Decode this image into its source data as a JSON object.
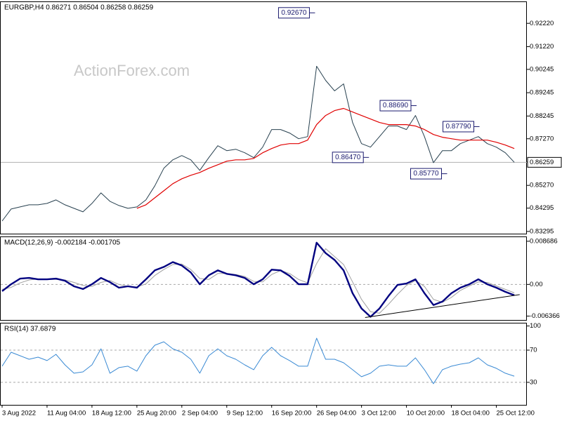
{
  "chart_data": [
    {
      "type": "line",
      "title": "EURGBP,H4  0.86271 0.86504 0.86258 0.86259",
      "watermark": "ActionForex.com",
      "xlim": [
        0,
        58.4
      ],
      "ylim": [
        0.832,
        0.9316
      ],
      "yticks": [
        {
          "value": 0.9222,
          "label": "0.92220"
        },
        {
          "value": 0.9122,
          "label": "0.91220"
        },
        {
          "value": 0.90245,
          "label": "0.90245"
        },
        {
          "value": 0.89245,
          "label": "0.89245"
        },
        {
          "value": 0.88245,
          "label": "0.88245"
        },
        {
          "value": 0.8727,
          "label": "0.87270"
        },
        {
          "value": 0.8627,
          "label": "0.86270"
        },
        {
          "value": 0.8527,
          "label": "0.85270"
        },
        {
          "value": 0.84295,
          "label": "0.84295"
        },
        {
          "value": 0.83295,
          "label": "0.83295"
        }
      ],
      "last_price": 0.86259,
      "series": [
        {
          "color": "#27404f",
          "width": 1,
          "values": [
            0.83743,
            0.84256,
            0.84346,
            0.84437,
            0.84437,
            0.84497,
            0.84648,
            0.84437,
            0.84285,
            0.84135,
            0.84497,
            0.84949,
            0.84587,
            0.84406,
            0.84285,
            0.84346,
            0.84648,
            0.85251,
            0.86005,
            0.86367,
            0.86548,
            0.86367,
            0.85915,
            0.86458,
            0.86971,
            0.86759,
            0.8682,
            0.86669,
            0.86458,
            0.8691,
            0.87664,
            0.87664,
            0.87514,
            0.87272,
            0.87363,
            0.9038,
            0.89776,
            0.89324,
            0.89625,
            0.87966,
            0.87061,
            0.8691,
            0.87363,
            0.87815,
            0.87815,
            0.87664,
            0.88268,
            0.87363,
            0.86246,
            0.86759,
            0.86759,
            0.87061,
            0.87212,
            0.87363,
            0.87061,
            0.8691,
            0.86669,
            0.86259
          ]
        },
        {
          "color": "#e00000",
          "width": 1.2,
          "values": [
            null,
            null,
            null,
            null,
            null,
            null,
            null,
            null,
            null,
            null,
            null,
            null,
            null,
            null,
            null,
            0.84285,
            0.84437,
            0.84738,
            0.8504,
            0.85342,
            0.85553,
            0.85703,
            0.85824,
            0.86005,
            0.86156,
            0.86307,
            0.86367,
            0.86367,
            0.86427,
            0.86669,
            0.8685,
            0.87001,
            0.87061,
            0.87061,
            0.87212,
            0.87876,
            0.88268,
            0.88479,
            0.8857,
            0.88419,
            0.88268,
            0.88117,
            0.87966,
            0.87876,
            0.87876,
            0.87876,
            0.87815,
            0.87664,
            0.87453,
            0.87333,
            0.87272,
            0.87212,
            0.87212,
            0.87212,
            0.87212,
            0.87121,
            0.87001,
            0.8685
          ]
        }
      ],
      "annotations": [
        {
          "label": "0.92670",
          "value": 0.9267,
          "x": 34.2
        },
        {
          "label": "0.86470",
          "value": 0.8647,
          "x": 40.2
        },
        {
          "label": "0.88690",
          "value": 0.8869,
          "x": 45.5
        },
        {
          "label": "0.85770",
          "value": 0.8577,
          "x": 48.9
        },
        {
          "label": "0.87790",
          "value": 0.8779,
          "x": 52.5
        }
      ]
    },
    {
      "type": "line",
      "title": "MACD(12,26,9) -0.002184 -0.001705",
      "xlim": [
        0,
        58.4
      ],
      "ylim": [
        -0.00715,
        0.00965
      ],
      "yticks": [
        0.008686,
        {
          "value": 0,
          "label": "0.00"
        },
        -0.006366
      ],
      "levels": [
        0
      ],
      "series": [
        {
          "color": "#a0a0a0",
          "width": 1,
          "values": [
            -0.001,
            -0.0006,
            0.0003,
            0.0009,
            0.0011,
            0.001,
            0.001,
            0.0009,
            0.0004,
            -0.0002,
            -0.0004,
            0.0004,
            0.0008,
            0,
            -0.0004,
            -0.0005,
            0.0001,
            0.0018,
            0.003,
            0.004,
            0.0041,
            0.003,
            0.0012,
            0.001,
            0.0022,
            0.0022,
            0.002,
            0.0016,
            0.0006,
            0.0005,
            0.002,
            0.0028,
            0.0022,
            0.001,
            0.0003,
            0.0042,
            0.0072,
            0.0056,
            0.004,
            0.0005,
            -0.003,
            -0.0055,
            -0.0058,
            -0.004,
            -0.002,
            -0.0002,
            0.0008,
            -0.0004,
            -0.003,
            -0.0036,
            -0.0026,
            -0.0012,
            -0.0003,
            0.0005,
            0.0004,
            -0.0003,
            -0.001,
            -0.001705
          ]
        },
        {
          "color": "#000080",
          "width": 2.4,
          "values": [
            -0.00135,
            4e-05,
            0.00116,
            0.0013,
            0.00102,
            0.00102,
            0.00116,
            0.00074,
            -0.00038,
            -0.00093,
            4e-05,
            0.0013,
            0.00046,
            -0.00066,
            -0.00038,
            -0.00066,
            0.00102,
            0.00283,
            0.00353,
            0.0045,
            0.0038,
            0.00241,
            4e-05,
            0.00185,
            0.00283,
            0.00213,
            0.00185,
            0.0013,
            4e-05,
            0.00102,
            0.00297,
            0.00283,
            0.00171,
            4e-05,
            4e-05,
            0.0084,
            0.00631,
            0.00492,
            0.00283,
            -0.00177,
            -0.00484,
            -0.00651,
            -0.00484,
            -0.00233,
            -0.0001,
            0.00018,
            0.00102,
            -0.00177,
            -0.00414,
            -0.00344,
            -0.00177,
            -0.00066,
            4e-05,
            0.00102,
            4e-05,
            -0.00066,
            -0.00149,
            -0.002184
          ]
        }
      ],
      "trendline": {
        "color": "#000000",
        "x": [
          40.4,
          57.6
        ],
        "values": [
          -0.00665,
          -0.00205
        ]
      }
    },
    {
      "type": "line",
      "title": "RSI(14) 37.6879",
      "xlim": [
        0,
        58.4
      ],
      "ylim": [
        2,
        104
      ],
      "yticks": [
        100,
        70,
        30
      ],
      "levels": [
        70,
        30
      ],
      "series": [
        {
          "color": "#3a8ad4",
          "width": 1,
          "values": [
            50,
            67.4,
            63,
            58.7,
            61.3,
            57,
            64.8,
            51.7,
            41.3,
            43,
            51.7,
            71.7,
            41.3,
            48.3,
            50,
            43.9,
            63,
            76.1,
            80.4,
            71.7,
            67.4,
            58.7,
            41.3,
            63,
            71.7,
            63,
            58.7,
            51.7,
            45.7,
            63,
            73.5,
            63,
            57,
            50,
            50,
            84.8,
            58.7,
            58.7,
            54.3,
            45.7,
            37,
            41.3,
            50,
            51.7,
            50,
            50,
            60.4,
            45.7,
            28.3,
            45.7,
            50,
            52.6,
            54.3,
            60.4,
            51.7,
            47.4,
            41.3,
            37.6879
          ]
        }
      ],
      "xticks": [
        {
          "value": 0,
          "label": "3 Aug 2022"
        },
        {
          "value": 5,
          "label": "11 Aug 04:00"
        },
        {
          "value": 10,
          "label": "18 Aug 12:00"
        },
        {
          "value": 15,
          "label": "25 Aug 20:00"
        },
        {
          "value": 20,
          "label": "2 Sep 04:00"
        },
        {
          "value": 25,
          "label": "9 Sep 12:00"
        },
        {
          "value": 30,
          "label": "16 Sep 20:00"
        },
        {
          "value": 35,
          "label": "26 Sep 04:00"
        },
        {
          "value": 40,
          "label": "3 Oct 12:00"
        },
        {
          "value": 45,
          "label": "10 Oct 20:00"
        },
        {
          "value": 50,
          "label": "18 Oct 04:00"
        },
        {
          "value": 55,
          "label": "25 Oct 12:00"
        }
      ]
    }
  ]
}
